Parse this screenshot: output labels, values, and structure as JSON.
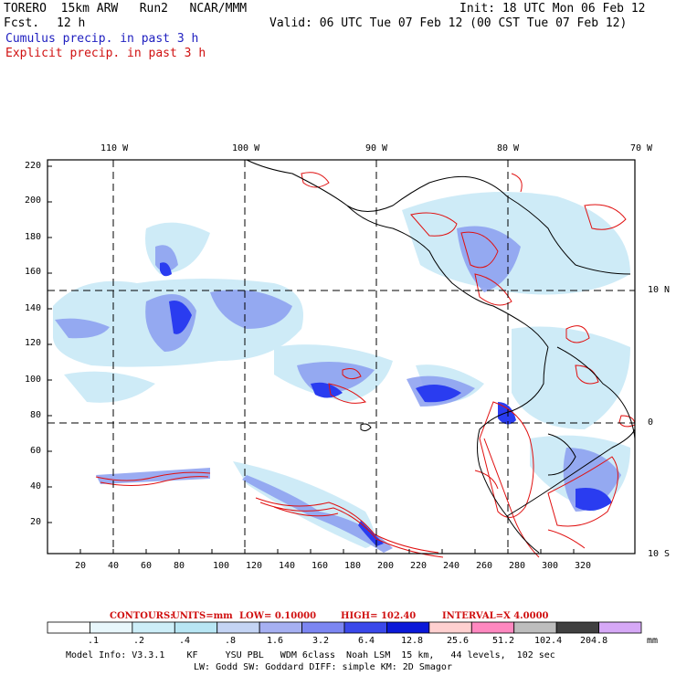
{
  "header": {
    "model_line": "TORERO  15km ARW   Run2   NCAR/MMM",
    "init_line": "Init: 18 UTC Mon 06 Feb 12",
    "fcst_label": "Fcst.",
    "fcst_value": "12 h",
    "valid_line": "Valid: 06 UTC Tue 07 Feb 12 (00 CST Tue 07 Feb 12)",
    "cumulus_label": "Cumulus precip. in past 3 h",
    "explicit_label": "Explicit precip. in past 3 h"
  },
  "map": {
    "lon_labels": [
      "110 W",
      "100 W",
      "90 W",
      "80 W",
      "70 W"
    ],
    "lat_labels": [
      "10 N",
      "0",
      "10 S"
    ],
    "y_ticks": [
      "220",
      "200",
      "180",
      "160",
      "140",
      "120",
      "100",
      "80",
      "60",
      "40",
      "20"
    ],
    "x_ticks": [
      "20",
      "40",
      "60",
      "80",
      "100",
      "120",
      "140",
      "160",
      "180",
      "200",
      "220",
      "240",
      "260",
      "280",
      "300",
      "320"
    ],
    "colors": {
      "cumulus_light": "#c6e8f6",
      "cumulus_mid": "#8a9ef0",
      "cumulus_dark": "#2a3cf0",
      "explicit_contour": "#e01010",
      "coastline": "#000000",
      "grid": "#000000"
    }
  },
  "contours_text": {
    "label": "CONTOURS:",
    "units": "UNITS=mm",
    "low": "LOW= 0.10000",
    "high": "HIGH= 102.40",
    "interval": "INTERVAL=X 4.0000"
  },
  "colorbar": {
    "labels": [
      ".1",
      ".2",
      ".4",
      ".8",
      "1.6",
      "3.2",
      "6.4",
      "12.8",
      "25.6",
      "51.2",
      "102.4",
      "204.8"
    ],
    "unit": "mm",
    "colors": [
      "#ffffff",
      "#e8f7fc",
      "#cdeef8",
      "#b8e6f4",
      "#c4d4f4",
      "#a6b0f2",
      "#7c86f2",
      "#3a48ea",
      "#0a18d8",
      "#ffd0d0",
      "#ff88c0",
      "#bdbdbd",
      "#404040",
      "#d6a8f6"
    ]
  },
  "footer": {
    "line1": "Model Info: V3.3.1    KF     YSU PBL   WDM 6class  Noah LSM  15 km,   44 levels,  102 sec",
    "line2": "LW: Godd SW: Goddard DIFF: simple KM: 2D Smagor"
  }
}
